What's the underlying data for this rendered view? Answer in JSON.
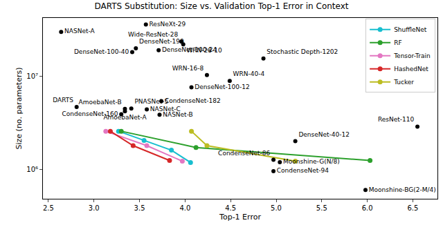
{
  "chart_data": {
    "type": "scatter",
    "title": "DARTS Substitution: Size vs. Validation Top-1 Error in Context",
    "x_label": "Top-1 Error",
    "y_label": "Size (no. parameters)",
    "log": "y",
    "grid": false,
    "legend": "upper right",
    "xlim": [
      2.44,
      6.77
    ],
    "xticks": [
      2.5,
      {
        "value": 3,
        "label": "3.0"
      },
      3.5,
      {
        "value": 4,
        "label": "4.0"
      },
      4.5,
      {
        "value": 5,
        "label": "5.0"
      },
      5.5,
      {
        "value": 6,
        "label": "6.0"
      },
      6.5
    ],
    "ylim": [
      480000,
      42400000
    ],
    "yticks": [
      {
        "value": 1000000,
        "label": "10⁶"
      },
      {
        "value": 10000000,
        "label": "10⁷"
      }
    ],
    "points": {
      "color": "#000000",
      "marker": "circle",
      "names": [
        "ResNeXt-29",
        "NASNet-A",
        "Wide-ResNet-28",
        "WRN-28-10",
        "DenseNet-190",
        "DenseNet-100-40",
        "DenseNet-100-24",
        "Stochastic Depth-1202",
        "WRN-16-8",
        "WRN-40-4",
        "DenseNet-100-12",
        "CondenseNet-182",
        "DARTS",
        "CondenseNet-160",
        "PNASNet-5",
        "AmoebaNet-B",
        "NASNet-C",
        "AmoebaNet-A",
        "NASNet-B",
        "ResNet-110",
        "DenseNet-40-12",
        "CondenseNet-86",
        "Moonshine-G(N/8)",
        "CondenseNet-94",
        "Moonshine-BG(2-M/4)"
      ],
      "x": [
        3.57,
        2.64,
        3.96,
        3.98,
        3.46,
        3.42,
        3.71,
        4.86,
        4.24,
        4.49,
        4.07,
        3.74,
        2.81,
        3.3,
        3.41,
        3.34,
        3.58,
        3.34,
        3.72,
        6.55,
        5.21,
        4.97,
        5.04,
        4.97,
        5.98
      ],
      "values": [
        36000000,
        30000000,
        23600000,
        22000000,
        20000000,
        18200000,
        19100000,
        15500000,
        10300000,
        8900000,
        7600000,
        5400000,
        4670000,
        3900000,
        4500000,
        4450000,
        4400000,
        4200000,
        3850000,
        2870000,
        2000000,
        1260000,
        1190000,
        950000,
        596000
      ]
    },
    "series": [
      {
        "name": "ShuffleNet",
        "color": "#17becf",
        "marker": "circle",
        "line_style": "solid",
        "x": [
          3.27,
          3.55,
          3.85,
          4.06
        ],
        "values": [
          2560000,
          2040000,
          1600000,
          1180000
        ]
      },
      {
        "name": "RF",
        "color": "#2ca02c",
        "marker": "circle",
        "line_style": "solid",
        "x": [
          3.3,
          4.12,
          6.03
        ],
        "values": [
          2560000,
          1710000,
          1240000
        ]
      },
      {
        "name": "Tensor-Train",
        "color": "#e377c2",
        "marker": "circle",
        "line_style": "solid",
        "x": [
          3.13,
          3.58,
          3.97
        ],
        "values": [
          2560000,
          1790000,
          1220000
        ]
      },
      {
        "name": "HashedNet",
        "color": "#d62728",
        "marker": "circle",
        "line_style": "solid",
        "x": [
          3.18,
          3.43,
          3.83
        ],
        "values": [
          2560000,
          1790000,
          1240000
        ]
      },
      {
        "name": "Tucker",
        "color": "#bcbd22",
        "marker": "circle",
        "line_style": "solid",
        "x": [
          4.07,
          4.24,
          5.21
        ],
        "values": [
          2560000,
          1790000,
          1220000
        ]
      }
    ]
  }
}
